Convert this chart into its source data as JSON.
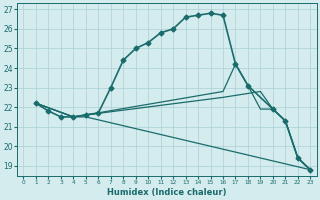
{
  "title": "",
  "xlabel": "Humidex (Indice chaleur)",
  "xlim": [
    -0.5,
    23.5
  ],
  "ylim": [
    18.5,
    27.3
  ],
  "yticks": [
    19,
    20,
    21,
    22,
    23,
    24,
    25,
    26,
    27
  ],
  "xticks": [
    0,
    1,
    2,
    3,
    4,
    5,
    6,
    7,
    8,
    9,
    10,
    11,
    12,
    13,
    14,
    15,
    16,
    17,
    18,
    19,
    20,
    21,
    22,
    23
  ],
  "bg_color": "#d4ecee",
  "grid_color": "#aacfd4",
  "line_color": "#1a6b6b",
  "lines": [
    {
      "x": [
        1,
        2,
        3,
        4,
        5,
        6,
        7,
        8,
        9,
        10,
        11,
        12,
        13,
        14,
        15,
        16,
        17,
        18,
        20,
        21,
        22,
        23
      ],
      "y": [
        22.2,
        21.8,
        21.5,
        21.5,
        21.6,
        21.7,
        23.0,
        24.4,
        25.0,
        25.3,
        25.8,
        26.0,
        26.6,
        26.7,
        26.8,
        26.7,
        24.2,
        23.1,
        21.9,
        21.3,
        19.4,
        18.8
      ],
      "marker": "D",
      "markersize": 2.5,
      "linewidth": 1.2
    },
    {
      "x": [
        1,
        4,
        5,
        23
      ],
      "y": [
        22.2,
        21.5,
        21.5,
        18.8
      ],
      "marker": null,
      "markersize": 0,
      "linewidth": 0.9
    },
    {
      "x": [
        1,
        4,
        5,
        16,
        19,
        20,
        21,
        22,
        23
      ],
      "y": [
        22.2,
        21.5,
        21.6,
        22.5,
        22.8,
        21.9,
        21.3,
        19.4,
        18.8
      ],
      "marker": null,
      "markersize": 0,
      "linewidth": 0.9
    },
    {
      "x": [
        1,
        4,
        5,
        16,
        17,
        18,
        19,
        20,
        21,
        22,
        23
      ],
      "y": [
        22.2,
        21.5,
        21.6,
        22.8,
        24.2,
        23.1,
        21.9,
        21.9,
        21.3,
        19.4,
        18.8
      ],
      "marker": null,
      "markersize": 0,
      "linewidth": 0.9
    }
  ]
}
